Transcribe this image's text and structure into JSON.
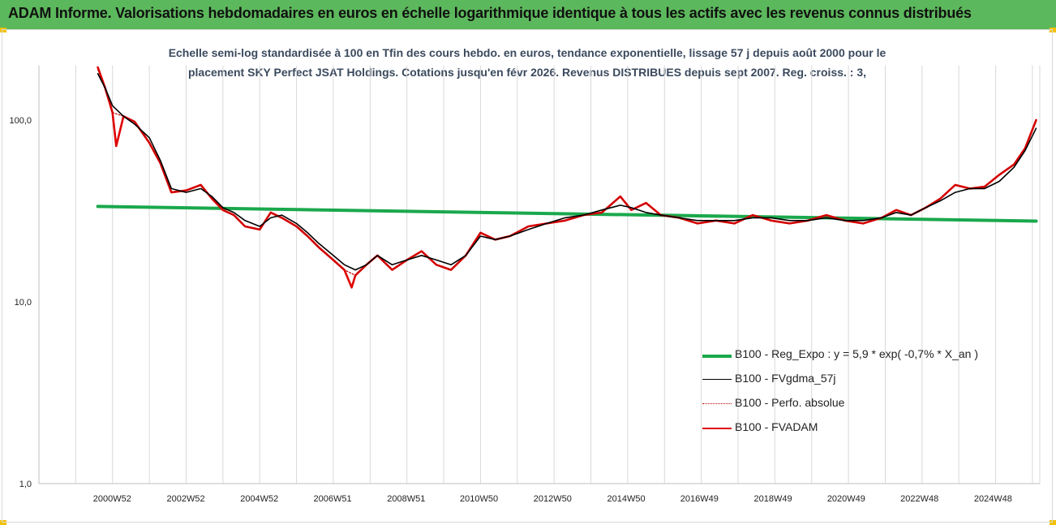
{
  "banner": {
    "title": "ADAM Informe. Valorisations hebdomadaires en euros en échelle logarithmique identique à tous les actifs avec les revenus connus distribués"
  },
  "colors": {
    "banner_bg": "#5cb85c",
    "corner_marks": "#f2c200",
    "reg_expo": "#1aa84c",
    "fvgdma": "#000000",
    "perfo": "#c00000",
    "fvadam": "#e00000"
  },
  "chart_data": {
    "type": "line",
    "title_lines": [
      "Echelle semi-log standardisée à 100 en Tfin des cours hebdo. en euros, tendance exponentielle, lissage 57 j depuis août 2000 pour le",
      "placement SKY Perfect JSAT Holdings. Cotations jusqu'en févr 2026. Revenus DISTRIBUES depuis sept 2007. Reg. croiss. : 3,"
    ],
    "y_scale": "log",
    "ylim": [
      1,
      200
    ],
    "y_ticks": [
      "1,0",
      "10,0",
      "100,0"
    ],
    "y_tick_values": [
      1,
      10,
      100
    ],
    "xlim": [
      1999.0,
      2026.2
    ],
    "x_ticks": [
      "2000W52",
      "2002W52",
      "2004W52",
      "2006W51",
      "2008W51",
      "2010W50",
      "2012W50",
      "2014W50",
      "2016W49",
      "2018W49",
      "2020W49",
      "2022W48",
      "2024W48"
    ],
    "x_tick_positions": [
      2000.99,
      2002.99,
      2004.99,
      2006.98,
      2008.98,
      2010.96,
      2012.96,
      2014.96,
      2016.95,
      2018.95,
      2020.94,
      2022.93,
      2024.93
    ],
    "grid": "vertical",
    "legend_position": "bottom-right",
    "series": [
      {
        "name": "B100 - Reg_Expo : y = 5,9 * exp( -0,7% *  X_an )",
        "color": "#1aa84c",
        "x": [
          2000.6,
          2026.1
        ],
        "y": [
          33.5,
          27.8
        ]
      },
      {
        "name": "B100 - FVgdma_57j",
        "color": "#000000",
        "x": [
          2000.6,
          2000.8,
          2001.0,
          2001.3,
          2001.6,
          2002.0,
          2002.3,
          2002.6,
          2003.0,
          2003.4,
          2003.7,
          2004.0,
          2004.3,
          2004.6,
          2005.0,
          2005.3,
          2005.6,
          2006.0,
          2006.3,
          2006.6,
          2007.0,
          2007.3,
          2007.6,
          2007.9,
          2008.2,
          2008.6,
          2009.0,
          2009.4,
          2009.8,
          2010.2,
          2010.6,
          2011.0,
          2011.4,
          2011.8,
          2012.3,
          2012.8,
          2013.3,
          2013.8,
          2014.3,
          2014.8,
          2015.1,
          2015.5,
          2015.9,
          2016.4,
          2016.9,
          2017.4,
          2017.9,
          2018.4,
          2018.9,
          2019.4,
          2019.9,
          2020.4,
          2020.9,
          2021.4,
          2021.9,
          2022.3,
          2022.7,
          2023.1,
          2023.5,
          2023.9,
          2024.3,
          2024.7,
          2025.1,
          2025.5,
          2025.8,
          2026.1
        ],
        "y": [
          180,
          150,
          120,
          105,
          95,
          80,
          60,
          42,
          40,
          42,
          38,
          33,
          31,
          28,
          26,
          29,
          30,
          27,
          24,
          21,
          18,
          16,
          15,
          16,
          18,
          16,
          17,
          18,
          17,
          16,
          18,
          23,
          22,
          23,
          25,
          27,
          29,
          30,
          32,
          34,
          33,
          31,
          30,
          29,
          28,
          28,
          28,
          29,
          29,
          28,
          28,
          29,
          28,
          28,
          29,
          31,
          30,
          33,
          36,
          40,
          42,
          42,
          46,
          55,
          68,
          90
        ]
      },
      {
        "name": "B100 - Perfo. absolue",
        "color": "#c00000",
        "x": [
          2000.6,
          2000.8,
          2001.0,
          2001.3,
          2001.6,
          2002.0,
          2002.3,
          2002.6,
          2003.0,
          2003.4,
          2003.7,
          2004.0,
          2004.3,
          2004.6,
          2005.0,
          2005.3,
          2005.6,
          2006.0,
          2006.3,
          2006.6,
          2007.0,
          2007.3,
          2007.6,
          2007.9,
          2008.2,
          2008.6,
          2009.0,
          2009.4,
          2009.8,
          2010.2,
          2010.6,
          2011.0,
          2011.4,
          2011.8,
          2012.3,
          2012.8,
          2013.3,
          2013.8,
          2014.3,
          2014.8,
          2015.1,
          2015.5,
          2015.9,
          2016.4,
          2016.9,
          2017.4,
          2017.9,
          2018.4,
          2018.9,
          2019.4,
          2019.9,
          2020.4,
          2020.9,
          2021.4,
          2021.9,
          2022.3,
          2022.7,
          2023.1,
          2023.5,
          2023.9,
          2024.3,
          2024.7,
          2025.1,
          2025.5,
          2025.8,
          2026.1
        ],
        "y": [
          190,
          150,
          110,
          105,
          98,
          75,
          58,
          40,
          41,
          44,
          37,
          32,
          30,
          26,
          25,
          31,
          29,
          26,
          23,
          20,
          17,
          15,
          14,
          16,
          18,
          15,
          17,
          19,
          16,
          15,
          18,
          24,
          22,
          23,
          26,
          27,
          28,
          30,
          31,
          38,
          32,
          35,
          30,
          29,
          27,
          28,
          27,
          30,
          28,
          27,
          28,
          30,
          28,
          27,
          29,
          32,
          30,
          33,
          37,
          44,
          42,
          43,
          50,
          57,
          70,
          100
        ]
      },
      {
        "name": "B100 - FVADAM",
        "color": "#e00000",
        "x": [
          2000.6,
          2000.8,
          2001.0,
          2001.1,
          2001.3,
          2001.6,
          2002.0,
          2002.3,
          2002.6,
          2003.0,
          2003.4,
          2003.7,
          2004.0,
          2004.3,
          2004.6,
          2005.0,
          2005.3,
          2005.6,
          2006.0,
          2006.3,
          2006.6,
          2007.0,
          2007.3,
          2007.5,
          2007.6,
          2007.9,
          2008.2,
          2008.6,
          2009.0,
          2009.4,
          2009.8,
          2010.2,
          2010.6,
          2011.0,
          2011.4,
          2011.8,
          2012.3,
          2012.8,
          2013.3,
          2013.8,
          2014.3,
          2014.8,
          2015.1,
          2015.5,
          2015.9,
          2016.4,
          2016.9,
          2017.4,
          2017.9,
          2018.4,
          2018.9,
          2019.4,
          2019.9,
          2020.4,
          2020.9,
          2021.4,
          2021.9,
          2022.3,
          2022.7,
          2023.1,
          2023.5,
          2023.9,
          2024.3,
          2024.7,
          2025.1,
          2025.5,
          2025.8,
          2026.1
        ],
        "y": [
          195,
          150,
          110,
          72,
          105,
          98,
          75,
          58,
          40,
          41,
          44,
          37,
          32,
          30,
          26,
          25,
          31,
          29,
          26,
          23,
          20,
          17,
          15,
          12,
          14,
          16,
          18,
          15,
          17,
          19,
          16,
          15,
          18,
          24,
          22,
          23,
          26,
          27,
          28,
          30,
          31,
          38,
          32,
          35,
          30,
          29,
          27,
          28,
          27,
          30,
          28,
          27,
          28,
          30,
          28,
          27,
          29,
          32,
          30,
          33,
          37,
          44,
          42,
          43,
          50,
          57,
          70,
          100
        ]
      }
    ]
  }
}
